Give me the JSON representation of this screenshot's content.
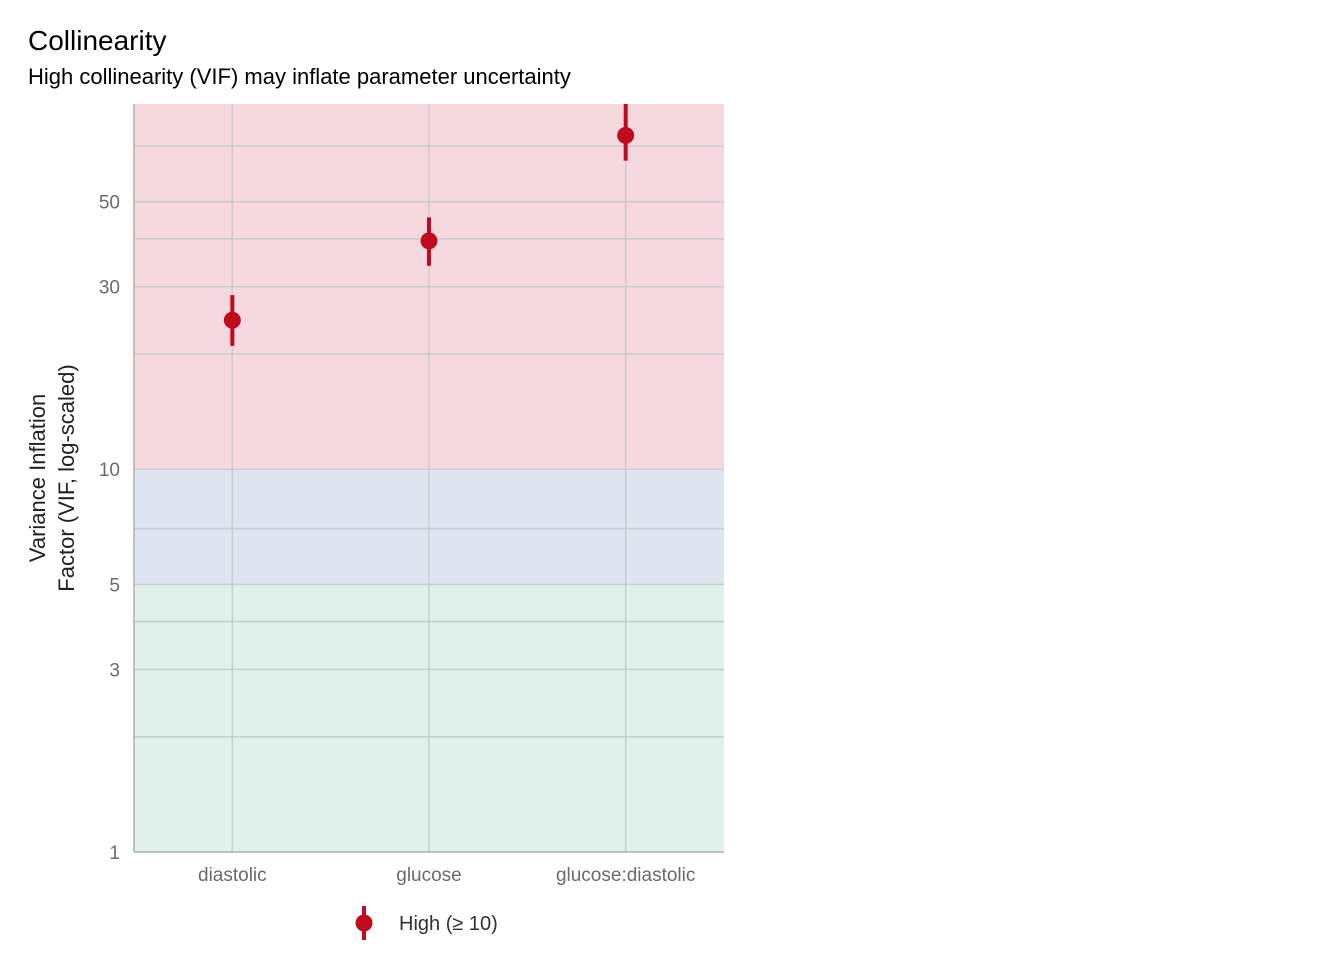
{
  "chart_data": {
    "type": "scatter",
    "title": "Collinearity",
    "subtitle": "High collinearity (VIF) may inflate parameter uncertainty",
    "xlabel": "",
    "ylabel_lines": [
      "Variance Inflation",
      "Factor (VIF, log-scaled)"
    ],
    "y_scale": "log",
    "ylim": [
      1,
      90
    ],
    "yticks": [
      1,
      3,
      5,
      10,
      30,
      50
    ],
    "ytick_labels": [
      "1",
      "3",
      "5",
      "10",
      "30",
      "50"
    ],
    "y_minor_gridlines": [
      2,
      4,
      7,
      20,
      40,
      70
    ],
    "grid": true,
    "categories": [
      "diastolic",
      "glucose",
      "glucose:diastolic"
    ],
    "series": [
      {
        "name": "High (≥ 10)",
        "color": "#c00a1e",
        "values": [
          24.5,
          39.5,
          74.5
        ],
        "ci_low": [
          21.0,
          34.0,
          64.0
        ],
        "ci_high": [
          28.5,
          45.5,
          90.0
        ]
      }
    ],
    "bands": [
      {
        "from": 1,
        "to": 5,
        "color": "#e0f0ea"
      },
      {
        "from": 5,
        "to": 10,
        "color": "#dfe5f0"
      },
      {
        "from": 10,
        "to": 90,
        "color": "#f5d9de"
      }
    ],
    "legend_position": "bottom",
    "legend": [
      {
        "label": "High (≥ 10)",
        "color": "#c00a1e"
      }
    ]
  }
}
